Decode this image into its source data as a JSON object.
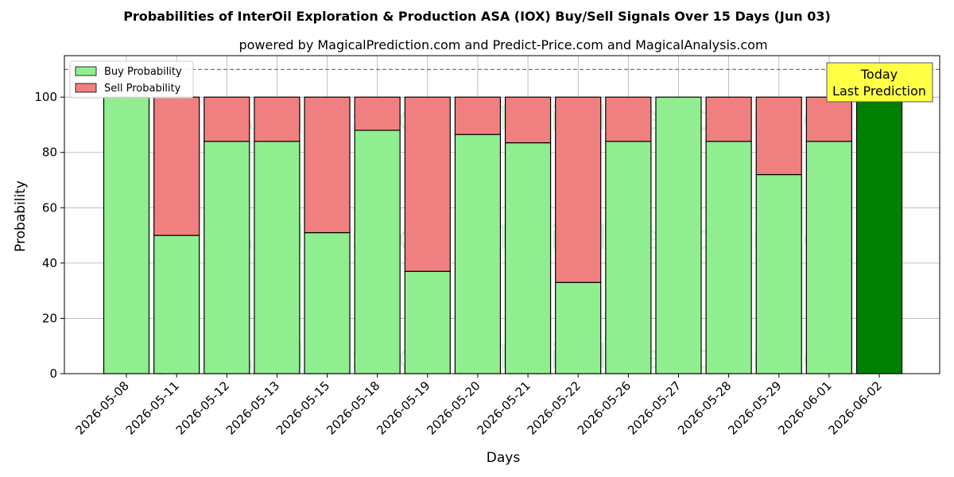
{
  "chart_data": {
    "type": "bar",
    "stacked": true,
    "title": "Probabilities of InterOil Exploration & Production ASA (IOX) Buy/Sell Signals Over 15 Days (Jun 03)",
    "subtitle": "powered by MagicalPrediction.com and Predict-Price.com and MagicalAnalysis.com",
    "xlabel": "Days",
    "ylabel": "Probability",
    "ylim": [
      0,
      115
    ],
    "yticks": [
      0,
      20,
      40,
      60,
      80,
      100
    ],
    "reference_line": 110,
    "grid": true,
    "legend_position": "top-left",
    "categories": [
      "2026-05-08",
      "2026-05-11",
      "2026-05-12",
      "2026-05-13",
      "2026-05-15",
      "2026-05-18",
      "2026-05-19",
      "2026-05-20",
      "2026-05-21",
      "2026-05-22",
      "2026-05-26",
      "2026-05-27",
      "2026-05-28",
      "2026-05-29",
      "2026-06-01",
      "2026-06-02"
    ],
    "series": [
      {
        "name": "Buy Probability",
        "color": "#90ee90",
        "values": [
          100,
          50,
          84,
          84,
          51,
          88,
          37,
          86.5,
          83.5,
          33,
          84,
          100,
          84,
          72,
          84,
          100
        ]
      },
      {
        "name": "Sell Probability",
        "color": "#f08080",
        "values": [
          0,
          50,
          16,
          16,
          49,
          12,
          63,
          13.5,
          16.5,
          67,
          16,
          0,
          16,
          28,
          16,
          0
        ]
      }
    ],
    "highlight": {
      "index": 15,
      "color": "#008000"
    },
    "annotation": {
      "line1": "Today",
      "line2": "Last Prediction",
      "background": "#ffff44"
    },
    "watermarks": [
      "MagicalAnalysis.com",
      "MagicalPrediction.com"
    ]
  }
}
